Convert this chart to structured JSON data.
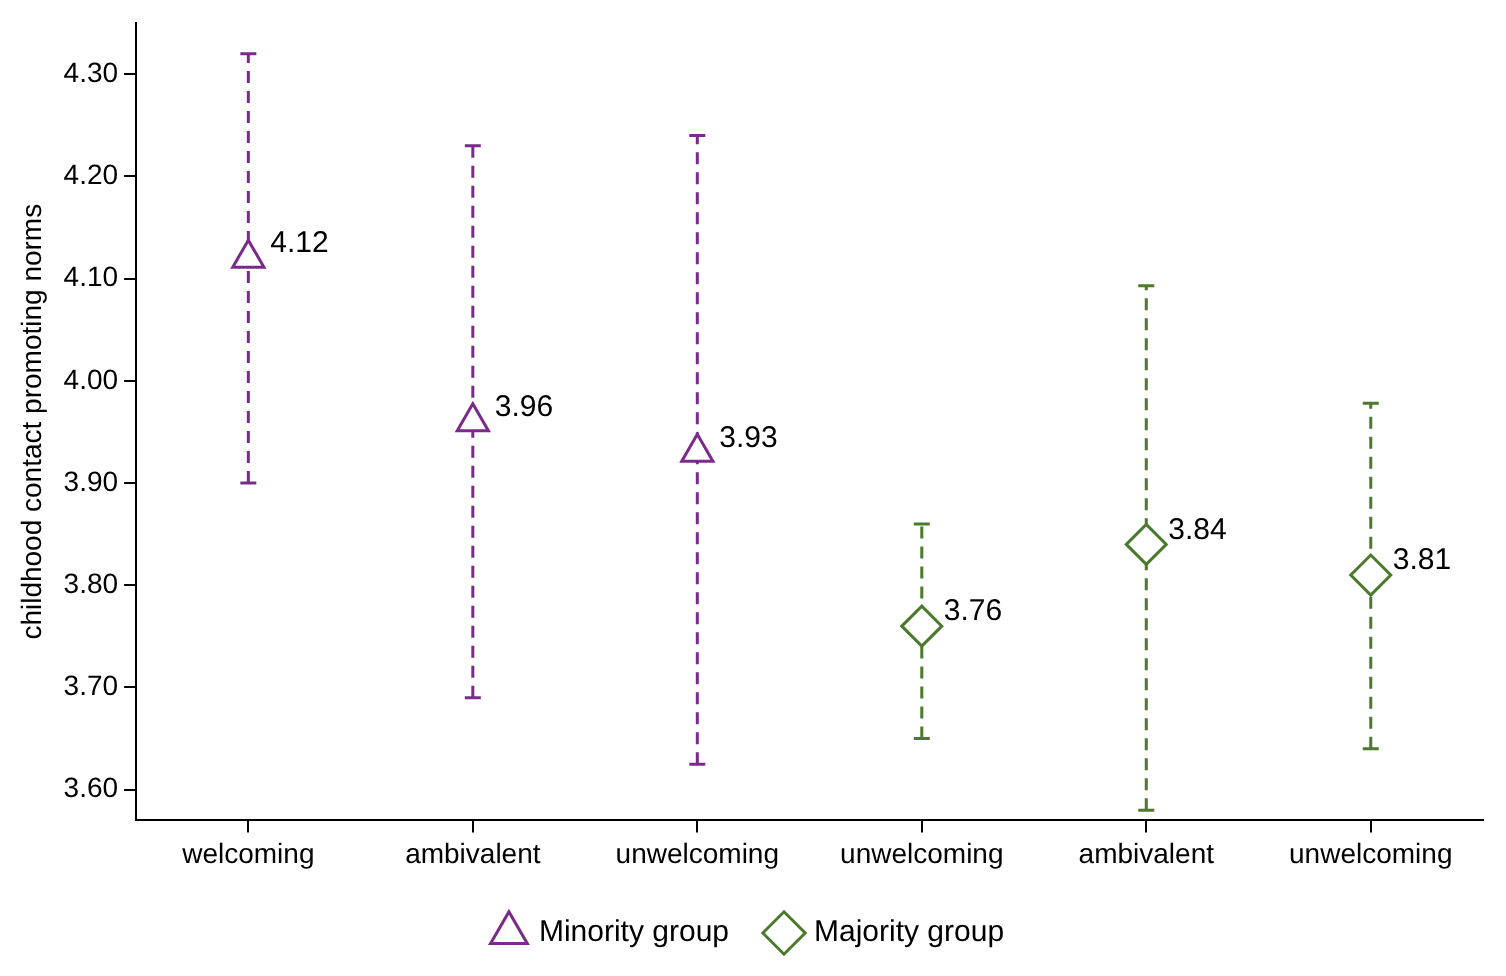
{
  "chart_data": {
    "type": "scatter",
    "ylabel": "childhood contact promoting norms",
    "categories": [
      "welcoming",
      "ambivalent",
      "unwelcoming",
      "unwelcoming",
      "ambivalent",
      "unwelcoming"
    ],
    "series": [
      {
        "name": "Minority group",
        "color": "#7b2a8c",
        "marker": "triangle",
        "values": [
          4.12,
          3.96,
          3.93,
          null,
          null,
          null
        ],
        "errors": [
          [
            3.9,
            4.32
          ],
          [
            3.69,
            4.23
          ],
          [
            3.625,
            4.24
          ],
          null,
          null,
          null
        ]
      },
      {
        "name": "Majority group",
        "color": "#4a7a2c",
        "marker": "diamond",
        "values": [
          null,
          null,
          null,
          3.76,
          3.84,
          3.81
        ],
        "errors": [
          null,
          null,
          null,
          [
            3.65,
            3.86
          ],
          [
            3.58,
            4.093
          ],
          [
            3.64,
            3.978
          ]
        ]
      }
    ],
    "ylim": [
      3.57,
      4.35
    ],
    "yticks": [
      {
        "value": 3.6,
        "label": "3.60"
      },
      {
        "value": 3.7,
        "label": "3.70"
      },
      {
        "value": 3.8,
        "label": "3.80"
      },
      {
        "value": 3.9,
        "label": "3.90"
      },
      {
        "value": 4.0,
        "label": "4.00"
      },
      {
        "value": 4.1,
        "label": "4.10"
      },
      {
        "value": 4.2,
        "label": "4.20"
      },
      {
        "value": 4.3,
        "label": "4.30"
      }
    ],
    "grid": false,
    "legend": "bottom",
    "data_labels": true,
    "line_style": "dashed"
  }
}
